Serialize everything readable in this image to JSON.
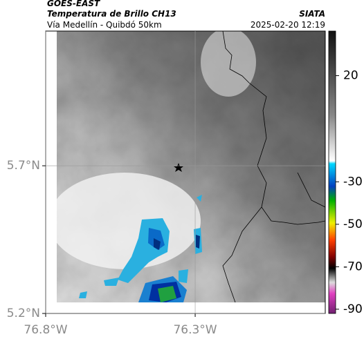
{
  "header": {
    "satellite": "GOES-EAST",
    "title": "Temperatura de Brillo CH13",
    "subtitle": "Vía Medellín - Quibdó 50km",
    "source": "SIATA",
    "timestamp": "2025-02-20 12:19"
  },
  "map": {
    "xlim": [
      -76.8,
      -75.865
    ],
    "ylim": [
      5.2,
      6.156
    ],
    "xticks": [
      {
        "value": -76.8,
        "label": "76.8°W"
      },
      {
        "value": -76.3,
        "label": "76.3°W"
      }
    ],
    "yticks": [
      {
        "value": 5.2,
        "label": "5.2°N"
      },
      {
        "value": 5.7,
        "label": "5.7°N"
      }
    ],
    "grid": true
  },
  "colorbar": {
    "clim": [
      -92,
      41
    ],
    "ticks": [
      20,
      -30,
      -50,
      -70,
      -90
    ]
  }
}
